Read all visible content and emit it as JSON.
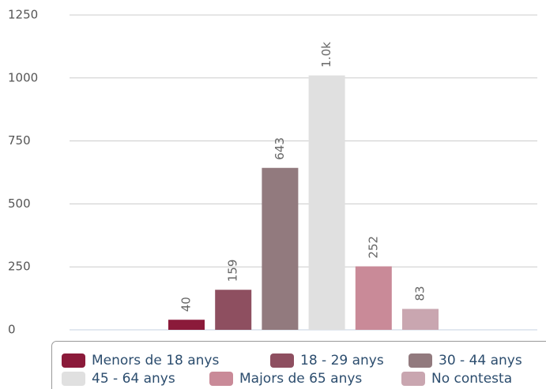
{
  "chart_data": {
    "type": "bar",
    "categories": [
      null
    ],
    "series": [
      {
        "name": "Menors de 18 anys",
        "color": "#8b1a3a",
        "values": [
          40
        ]
      },
      {
        "name": "18 - 29 anys",
        "color": "#8e4f60",
        "values": [
          159
        ]
      },
      {
        "name": "30 - 44 anys",
        "color": "#927a7e",
        "values": [
          643
        ]
      },
      {
        "name": "45 - 64 anys",
        "color": "#e0e0e0",
        "values": [
          1010
        ],
        "value_labels": [
          "1.0k"
        ]
      },
      {
        "name": "Majors de 65 anys",
        "color": "#c98a98",
        "values": [
          252
        ]
      },
      {
        "name": "No contesta",
        "color": "#c9a6b0",
        "values": [
          83
        ]
      }
    ],
    "ylim": [
      0,
      1250
    ],
    "yticks": [
      0,
      250,
      500,
      750,
      1000,
      1250
    ],
    "grid": true,
    "legend": "bottom"
  }
}
